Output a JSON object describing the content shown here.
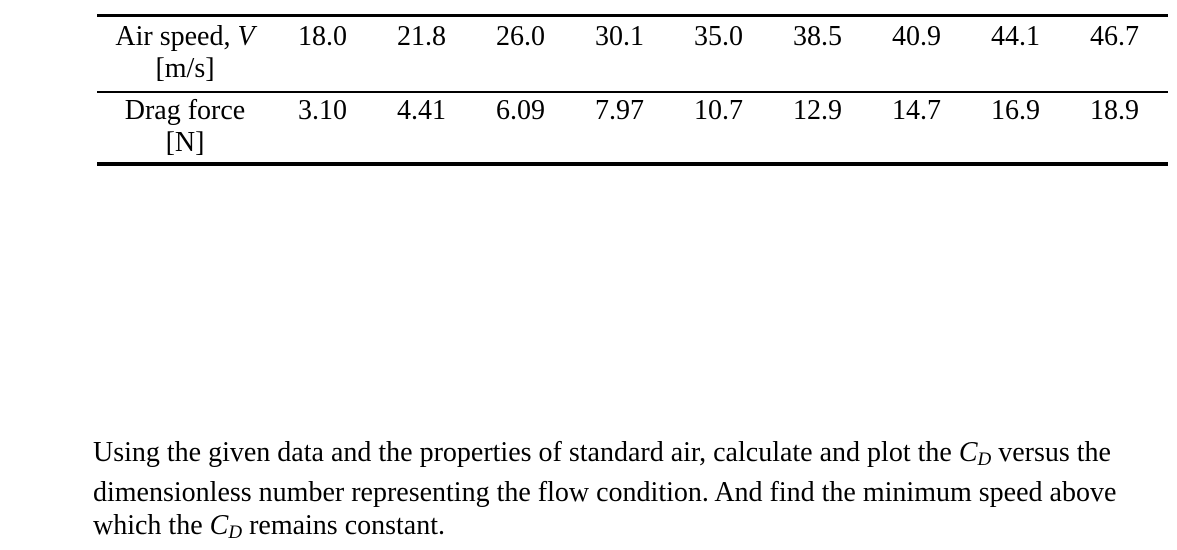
{
  "table": {
    "row1": {
      "label_prefix": "Air speed, ",
      "label_var": "V",
      "label_unit": "[m/s]",
      "values": [
        "18.0",
        "21.8",
        "26.0",
        "30.1",
        "35.0",
        "38.5",
        "40.9",
        "44.1",
        "46.7"
      ]
    },
    "row2": {
      "label": "Drag force",
      "label_unit": "[N]",
      "values": [
        "3.10",
        "4.41",
        "6.09",
        "7.97",
        "10.7",
        "12.9",
        "14.7",
        "16.9",
        "18.9"
      ]
    }
  },
  "problem": {
    "part1": "Using the given data and the properties of standard air, calculate and plot the ",
    "cd1_c": "C",
    "cd1_sub": "D",
    "part2": " versus the dimensionless number representing the flow condition. And find the minimum speed above which the ",
    "cd2_c": "C",
    "cd2_sub": "D",
    "part3": " remains constant."
  }
}
